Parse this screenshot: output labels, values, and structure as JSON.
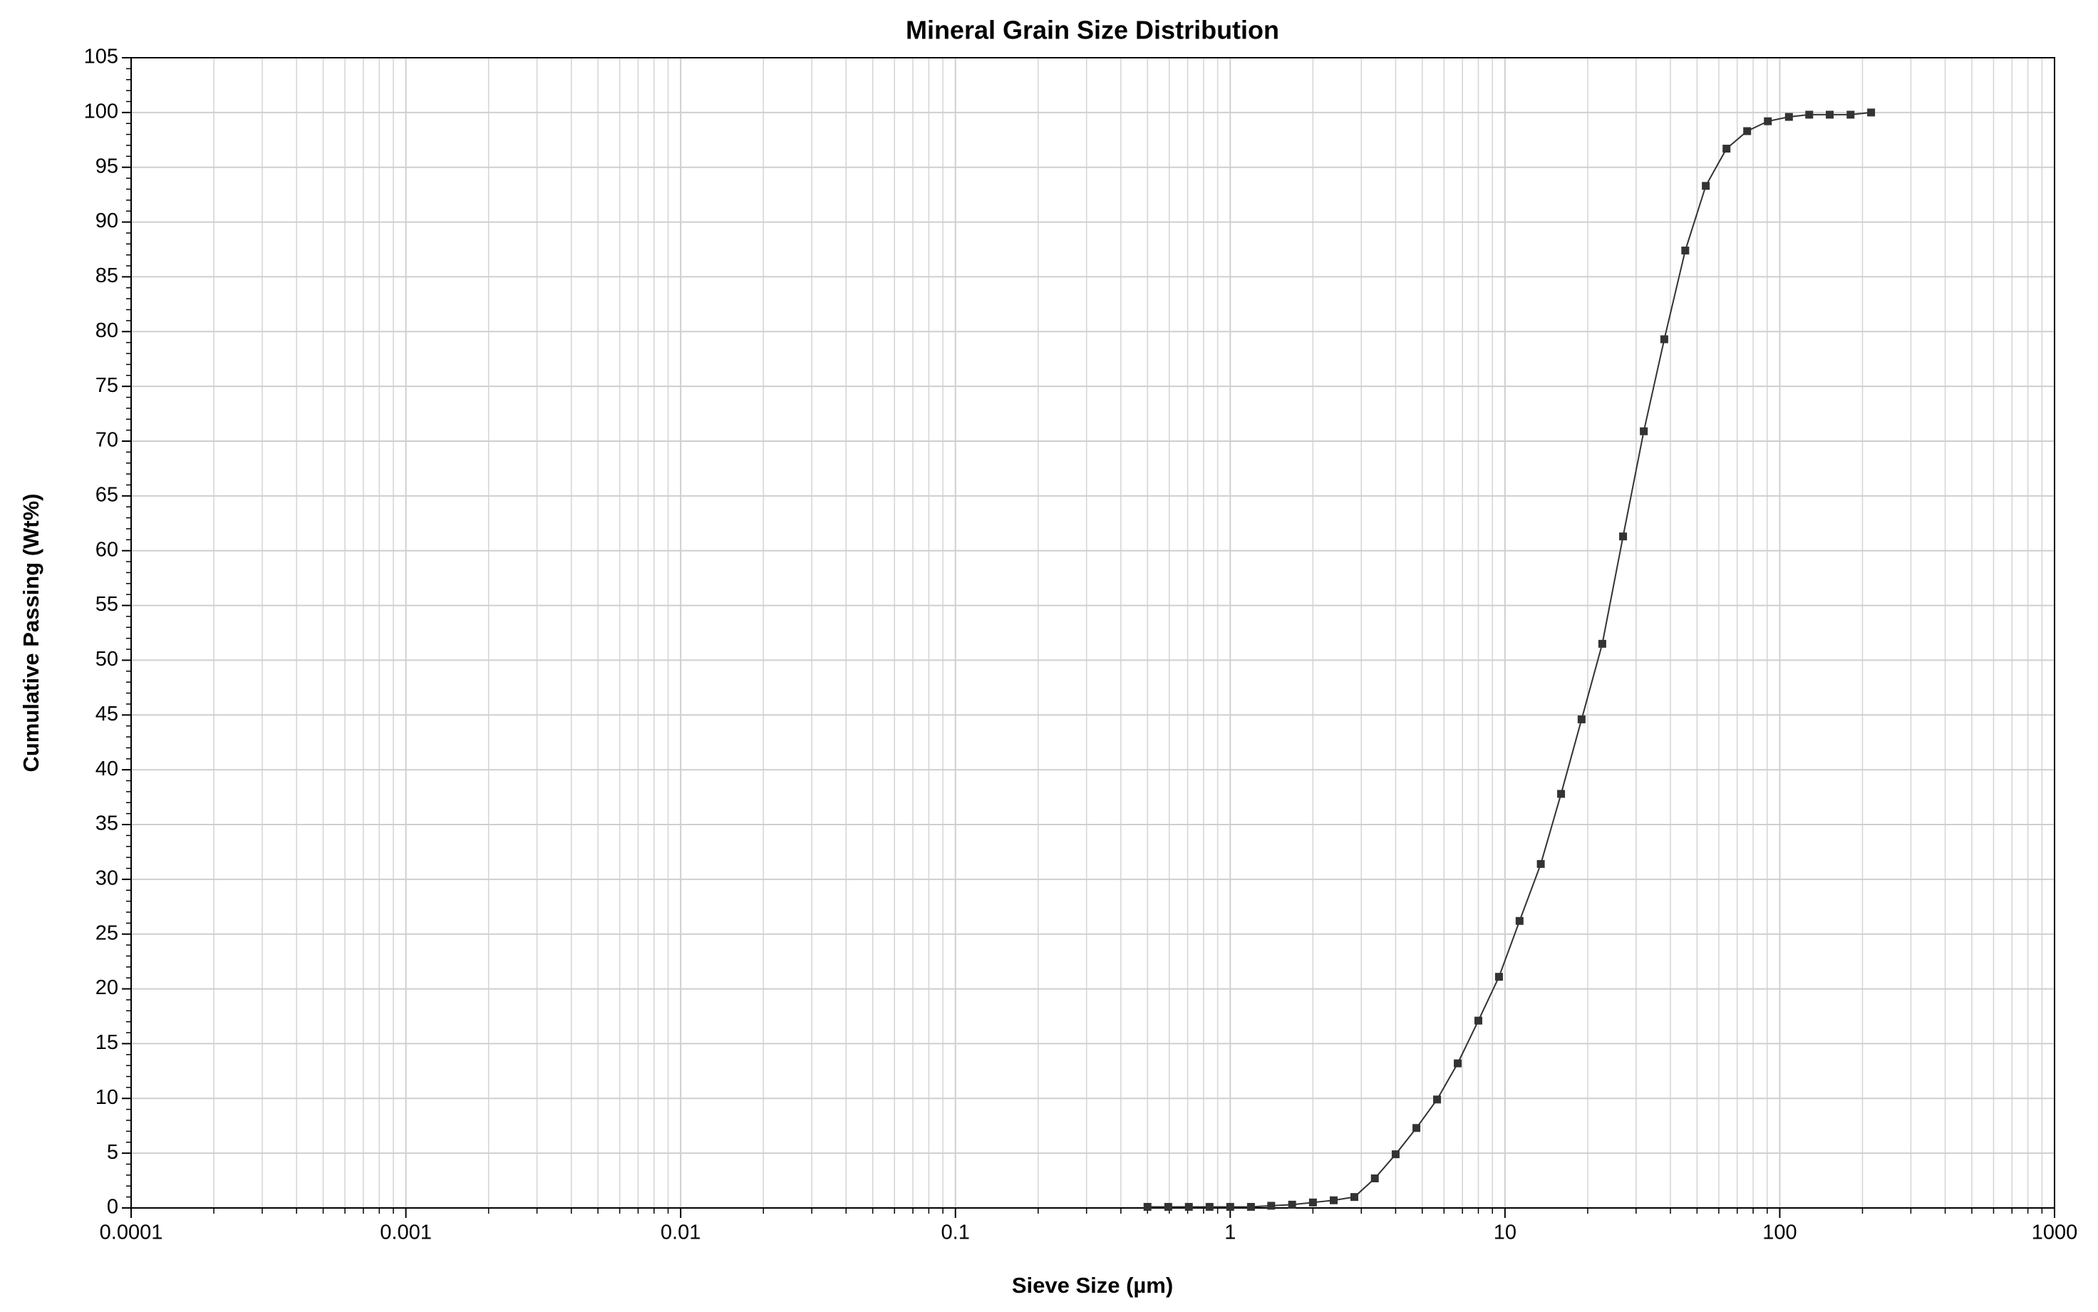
{
  "chart_data": {
    "type": "line",
    "title": "Mineral Grain Size Distribution",
    "x_label": "Sieve Size (µm)",
    "y_label": "Cumulative Passing (Wt%)",
    "x_log": true,
    "grid": true,
    "x_minor_grid": true,
    "x": [
      0.5,
      0.595,
      0.707,
      0.841,
      1,
      1.19,
      1.41,
      1.68,
      2,
      2.38,
      2.83,
      3.36,
      4,
      4.76,
      5.66,
      6.73,
      8,
      9.51,
      11.3,
      13.5,
      16,
      19,
      22.6,
      26.9,
      32,
      38,
      45.3,
      53.8,
      64,
      76.1,
      90.5,
      108,
      128,
      152,
      181,
      215
    ],
    "series": [
      {
        "color": "#333333",
        "values": [
          0.1,
          0.1,
          0.1,
          0.1,
          0.1,
          0.1,
          0.2,
          0.3,
          0.5,
          0.7,
          1.0,
          2.7,
          4.9,
          7.3,
          9.9,
          13.2,
          17.1,
          21.1,
          26.2,
          31.4,
          37.8,
          44.6,
          51.5,
          61.3,
          70.9,
          79.3,
          87.4,
          93.3,
          96.7,
          98.3,
          99.2,
          99.6,
          99.8,
          99.8,
          99.8,
          100
        ]
      }
    ],
    "xlim": [
      0.0001,
      1000
    ],
    "xticks": [
      0.0001,
      0.001,
      0.01,
      0.1,
      1,
      10,
      100,
      1000
    ],
    "ylim": [
      0,
      105
    ],
    "yticks": [
      0,
      5,
      10,
      15,
      20,
      25,
      30,
      35,
      40,
      45,
      50,
      55,
      60,
      65,
      70,
      75,
      80,
      85,
      90,
      95,
      100,
      105
    ]
  }
}
